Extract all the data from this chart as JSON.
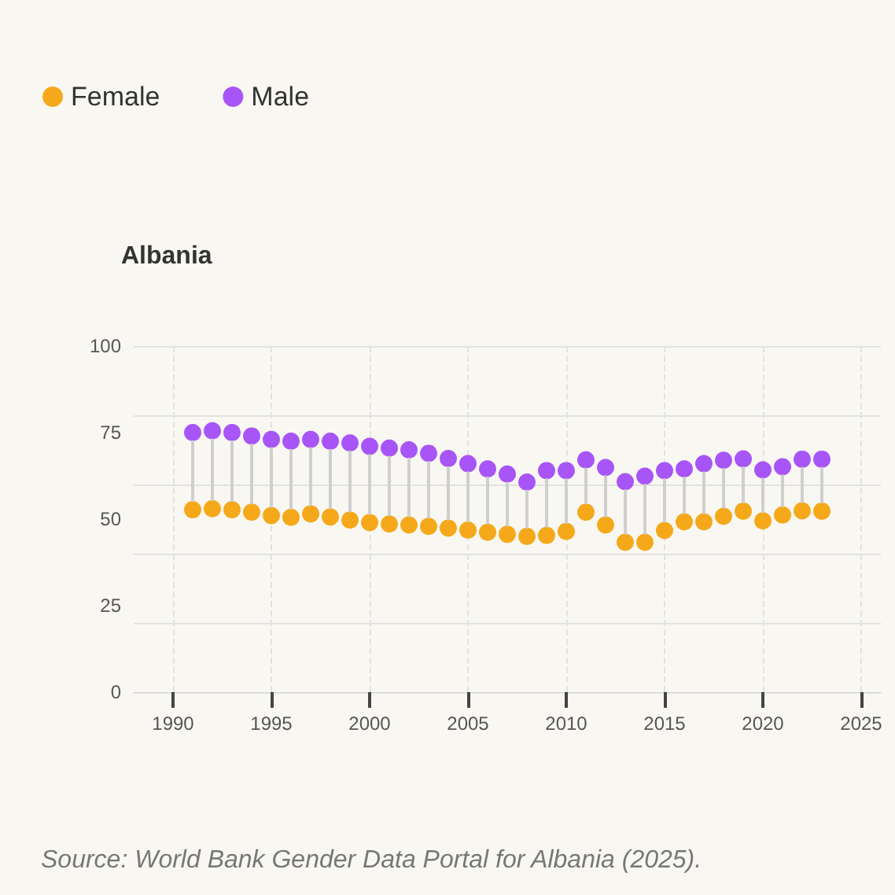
{
  "chart_data": {
    "type": "scatter",
    "title": "Albania",
    "annotations": [
      "Source: World Bank Gender Data Portal for Albania (2025)."
    ],
    "x": [
      1991,
      1992,
      1993,
      1994,
      1995,
      1996,
      1997,
      1998,
      1999,
      2000,
      2001,
      2002,
      2003,
      2004,
      2005,
      2006,
      2007,
      2008,
      2009,
      2010,
      2011,
      2012,
      2013,
      2014,
      2015,
      2016,
      2017,
      2018,
      2019,
      2020,
      2021,
      2022,
      2023
    ],
    "series": [
      {
        "name": "Female",
        "color": "#f5a91a",
        "values": [
          52.7,
          53,
          52.7,
          52,
          51,
          50.5,
          51.5,
          50.6,
          49.7,
          49,
          48.6,
          48.3,
          47.9,
          47.4,
          46.8,
          46.2,
          45.6,
          45,
          45.3,
          46.4,
          52,
          48.3,
          43.3,
          43.3,
          46.7,
          49.2,
          49.2,
          50.8,
          52.3,
          49.5,
          51.2,
          52.4,
          52.3
        ]
      },
      {
        "name": "Male",
        "color": "#a855f7",
        "values": [
          75,
          75.5,
          75,
          74,
          73,
          72.5,
          73,
          72.5,
          72,
          71,
          70.5,
          70,
          69,
          67.5,
          66,
          64.5,
          63,
          60.7,
          64,
          64,
          67.1,
          64.9,
          60.8,
          62.4,
          64,
          64.5,
          66,
          67,
          67.4,
          64.2,
          65.1,
          67.3,
          67.3
        ]
      }
    ],
    "xlim": [
      1988,
      2026
    ],
    "xticks": [
      1990,
      1995,
      2000,
      2005,
      2010,
      2015,
      2020,
      2025
    ],
    "ylim": [
      0,
      100
    ],
    "yticks": [
      0,
      25,
      50,
      75,
      100
    ],
    "grid": true,
    "legend": "top left",
    "marker": "circle"
  }
}
